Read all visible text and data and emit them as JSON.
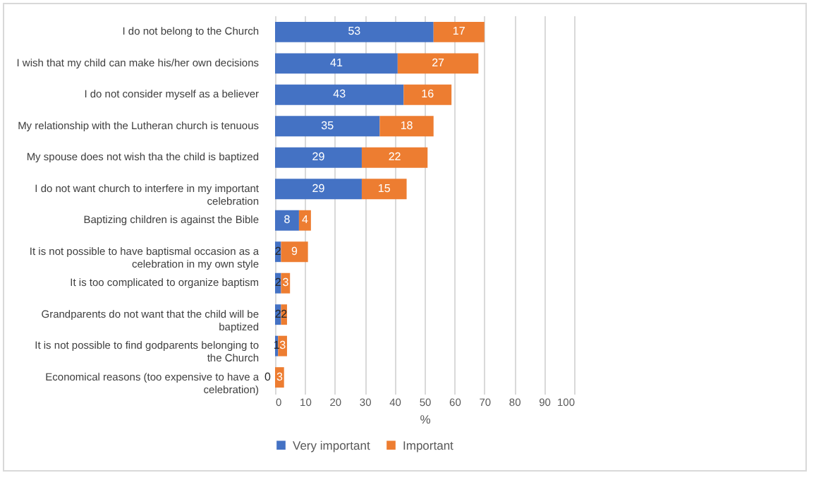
{
  "chart_data": {
    "type": "bar",
    "orientation": "horizontal",
    "stacked": true,
    "xlabel": "%",
    "categories": [
      "I do not belong to the Church",
      "I wish that my child can make his/her own decisions",
      "I do not consider myself as a believer",
      "My relationship with the Lutheran church is tenuous",
      "My spouse does not wish tha the child is baptized",
      "I do not want church to interfere in my important celebration",
      "Baptizing children is against the Bible",
      "It is not possible to have baptismal occasion as a celebration in my own style",
      "It is too complicated to organize baptism",
      "Grandparents do not want that the child will be baptized",
      "It is not possible to find godparents belonging to the Church",
      "Economical reasons (too expensive to have a celebration)"
    ],
    "series": [
      {
        "name": "Very important",
        "color": "#4472c4",
        "values": [
          53,
          41,
          43,
          35,
          29,
          29,
          8,
          2,
          2,
          2,
          1,
          0
        ]
      },
      {
        "name": "Important",
        "color": "#ed7d31",
        "values": [
          17,
          27,
          16,
          18,
          22,
          15,
          4,
          9,
          3,
          2,
          3,
          3
        ]
      }
    ],
    "xlim": [
      0,
      100
    ],
    "xticks": [
      0,
      10,
      20,
      30,
      40,
      50,
      60,
      70,
      80,
      90,
      100
    ],
    "grid": "x",
    "legend": "bottom",
    "data_labels": true
  }
}
